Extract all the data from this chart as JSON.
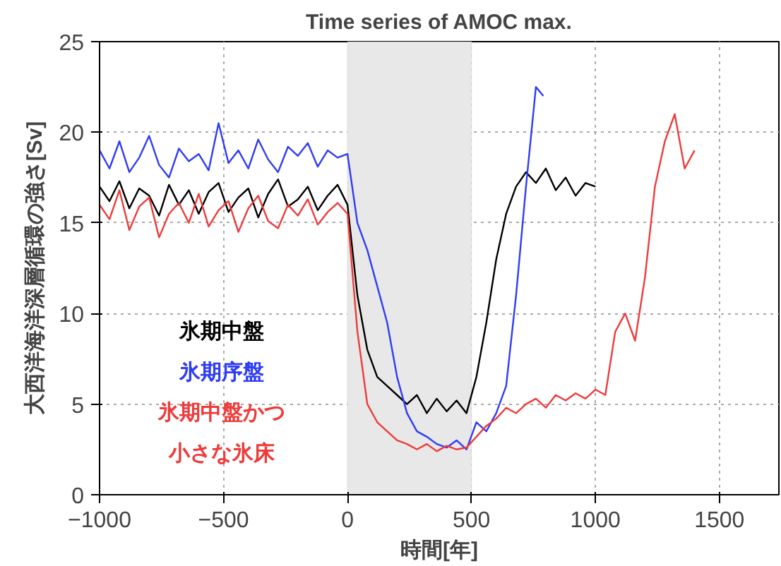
{
  "chart_data": {
    "type": "line",
    "title": "Time series of AMOC max.",
    "xlabel": "時間[年]",
    "ylabel": "大西洋海洋深層循環の強さ[Sv]",
    "xlim": [
      -1000,
      1740
    ],
    "ylim": [
      0,
      25
    ],
    "xticks": [
      -1000,
      -500,
      0,
      500,
      1000,
      1500
    ],
    "yticks": [
      0,
      5,
      10,
      15,
      20,
      25
    ],
    "grid": true,
    "legend": "bottom left",
    "bands": [
      {
        "axis": "x",
        "from": 0,
        "to": 500,
        "color": "#e8e8e8"
      }
    ],
    "series": [
      {
        "name": "氷期中盤",
        "color": "#000000",
        "x": [
          -1000,
          -960,
          -920,
          -880,
          -840,
          -800,
          -760,
          -720,
          -680,
          -640,
          -600,
          -560,
          -520,
          -480,
          -440,
          -400,
          -360,
          -320,
          -280,
          -240,
          -200,
          -160,
          -120,
          -80,
          -40,
          0,
          40,
          80,
          120,
          160,
          200,
          240,
          280,
          320,
          360,
          400,
          440,
          480,
          520,
          560,
          600,
          640,
          680,
          720,
          760,
          800,
          840,
          880,
          920,
          960,
          1000
        ],
        "values": [
          17,
          16.2,
          17.3,
          15.8,
          16.9,
          16.5,
          15.4,
          17.1,
          16.0,
          16.8,
          15.5,
          16.7,
          17.2,
          15.6,
          16.4,
          16.9,
          15.3,
          16.6,
          17.4,
          15.9,
          16.3,
          17.0,
          15.7,
          16.5,
          17.1,
          16.0,
          11,
          8,
          6.5,
          6,
          5.5,
          5,
          5.5,
          4.5,
          5.3,
          4.6,
          5.2,
          4.5,
          6.5,
          9.5,
          13,
          15.5,
          17,
          17.8,
          17.2,
          18,
          16.8,
          17.5,
          16.5,
          17.2,
          17.0
        ]
      },
      {
        "name": "氷期序盤",
        "color": "#2f3cf5",
        "x": [
          -1000,
          -960,
          -920,
          -880,
          -840,
          -800,
          -760,
          -720,
          -680,
          -640,
          -600,
          -560,
          -520,
          -480,
          -440,
          -400,
          -360,
          -320,
          -280,
          -240,
          -200,
          -160,
          -120,
          -80,
          -40,
          0,
          40,
          80,
          120,
          160,
          200,
          240,
          280,
          320,
          360,
          400,
          440,
          480,
          520,
          560,
          600,
          640,
          680,
          720,
          760,
          790
        ],
        "values": [
          19,
          18,
          19.5,
          17.8,
          18.6,
          19.8,
          18.2,
          17.5,
          19.1,
          18.4,
          18.8,
          17.9,
          20.5,
          18.3,
          19.0,
          18.0,
          19.6,
          18.5,
          17.8,
          19.2,
          18.7,
          19.4,
          18.1,
          19.0,
          18.6,
          18.8,
          15,
          13.5,
          11.5,
          9.5,
          6.5,
          4.5,
          3.5,
          3.2,
          2.8,
          2.6,
          3.0,
          2.5,
          4.0,
          3.5,
          4.5,
          6,
          11,
          17,
          22.5,
          22.0
        ]
      },
      {
        "name": "氷期中盤かつ小さな氷床",
        "color": "#ee3b3b",
        "x": [
          -1000,
          -960,
          -920,
          -880,
          -840,
          -800,
          -760,
          -720,
          -680,
          -640,
          -600,
          -560,
          -520,
          -480,
          -440,
          -400,
          -360,
          -320,
          -280,
          -240,
          -200,
          -160,
          -120,
          -80,
          -40,
          0,
          40,
          80,
          120,
          160,
          200,
          240,
          280,
          320,
          360,
          400,
          440,
          480,
          520,
          560,
          600,
          640,
          680,
          720,
          760,
          800,
          840,
          880,
          920,
          960,
          1000,
          1040,
          1080,
          1120,
          1160,
          1200,
          1240,
          1280,
          1320,
          1360,
          1400
        ],
        "values": [
          16,
          15.2,
          16.8,
          14.6,
          15.9,
          16.4,
          14.2,
          15.5,
          16.1,
          15.0,
          16.6,
          14.8,
          15.7,
          16.2,
          14.5,
          15.8,
          16.5,
          15.1,
          14.7,
          16.0,
          15.4,
          16.3,
          14.9,
          15.6,
          16.1,
          15.5,
          9,
          5,
          4,
          3.5,
          3,
          2.8,
          2.5,
          2.8,
          2.4,
          2.7,
          2.5,
          2.6,
          3.2,
          3.8,
          4.2,
          4.8,
          4.5,
          5.0,
          5.3,
          4.8,
          5.5,
          5.2,
          5.6,
          5.3,
          5.8,
          5.5,
          9,
          10,
          8.5,
          12,
          17,
          19.5,
          21,
          18,
          19
        ]
      }
    ]
  }
}
